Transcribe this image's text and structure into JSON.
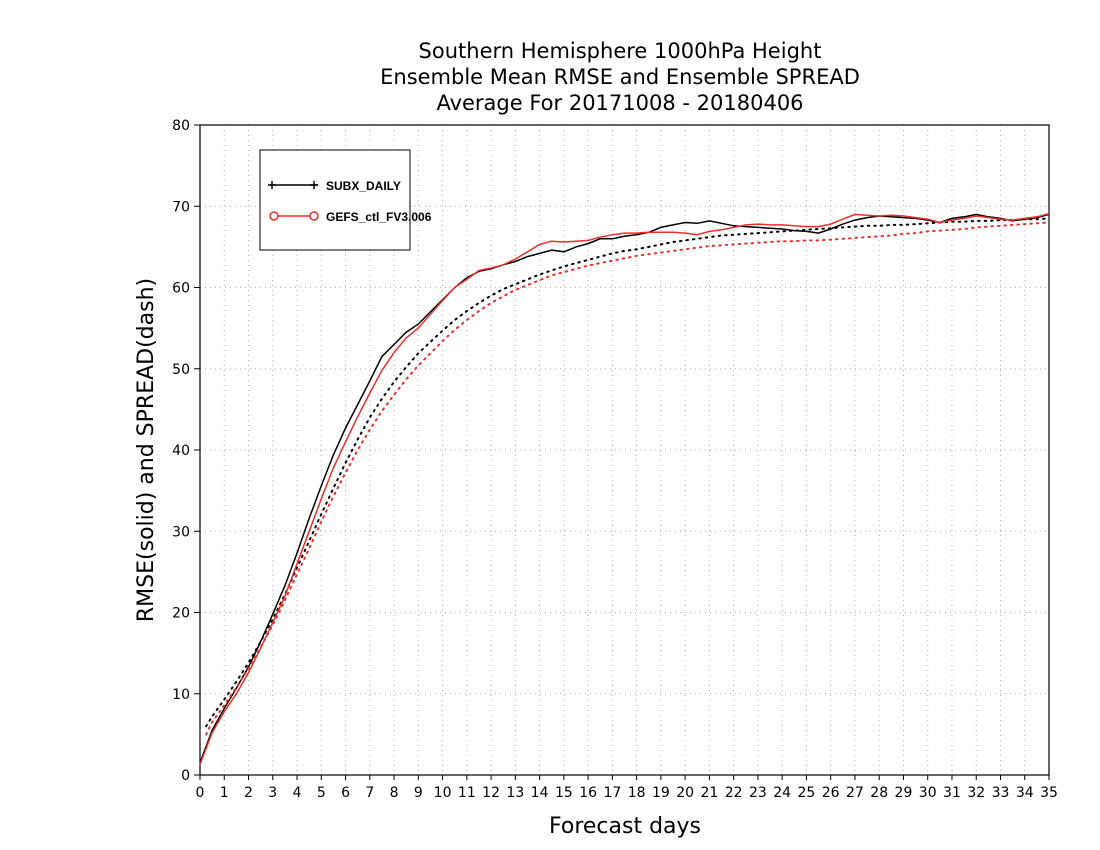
{
  "chart_data": {
    "type": "line",
    "title": [
      "Southern Hemisphere 1000hPa Height",
      "Ensemble Mean RMSE and Ensemble SPREAD",
      "Average For 20171008 - 20180406"
    ],
    "xlabel": "Forecast days",
    "ylabel": "RMSE(solid) and SPREAD(dash)",
    "xlim": [
      0,
      35
    ],
    "ylim": [
      0,
      80
    ],
    "xticks": [
      0,
      1,
      2,
      3,
      4,
      5,
      6,
      7,
      8,
      9,
      10,
      11,
      12,
      13,
      14,
      15,
      16,
      17,
      18,
      19,
      20,
      21,
      22,
      23,
      24,
      25,
      26,
      27,
      28,
      29,
      30,
      31,
      32,
      33,
      34,
      35
    ],
    "yticks": [
      0,
      10,
      20,
      30,
      40,
      50,
      60,
      70,
      80
    ],
    "grid": true,
    "legend_position": "top-left",
    "series": [
      {
        "name": "SUBX_DAILY",
        "color": "#000000",
        "marker": "plus",
        "rmse": {
          "x": [
            0,
            0.5,
            1,
            1.5,
            2,
            2.5,
            3,
            3.5,
            4,
            4.5,
            5,
            5.5,
            6,
            6.5,
            7,
            7.5,
            8,
            8.5,
            9,
            9.5,
            10,
            10.5,
            11,
            11.5,
            12,
            12.5,
            13,
            13.5,
            14,
            14.5,
            15,
            15.5,
            16,
            16.5,
            17,
            17.5,
            18,
            18.5,
            19,
            19.5,
            20,
            20.5,
            21,
            21.5,
            22,
            22.5,
            23,
            23.5,
            24,
            24.5,
            25,
            25.5,
            26,
            26.5,
            27,
            27.5,
            28,
            28.5,
            29,
            29.5,
            30,
            30.5,
            31,
            31.5,
            32,
            32.5,
            33,
            33.5,
            34,
            34.5,
            35
          ],
          "y": [
            1.5,
            5.5,
            8.2,
            10.7,
            13.3,
            16.4,
            19.8,
            23.3,
            27.3,
            31.6,
            35.6,
            39.4,
            42.7,
            45.6,
            48.5,
            51.5,
            53.0,
            54.5,
            55.5,
            57.0,
            58.5,
            60.0,
            61.2,
            62.0,
            62.3,
            62.8,
            63.2,
            63.8,
            64.2,
            64.6,
            64.4,
            65.0,
            65.4,
            66.0,
            66.0,
            66.3,
            66.5,
            66.8,
            67.4,
            67.7,
            68.0,
            67.9,
            68.2,
            67.9,
            67.6,
            67.5,
            67.4,
            67.3,
            67.2,
            67.0,
            66.9,
            66.7,
            67.2,
            67.8,
            68.3,
            68.6,
            68.8,
            68.7,
            68.6,
            68.5,
            68.3,
            68.0,
            68.5,
            68.7,
            69.0,
            68.7,
            68.5,
            68.2,
            68.4,
            68.6,
            69.0
          ]
        },
        "spread": {
          "x": [
            0.25,
            0.5,
            1,
            1.5,
            2,
            2.5,
            3,
            3.5,
            4,
            4.5,
            5,
            5.5,
            6,
            6.5,
            7,
            7.5,
            8,
            8.5,
            9,
            9.5,
            10,
            10.5,
            11,
            11.5,
            12,
            12.5,
            13,
            13.5,
            14,
            14.5,
            15,
            15.5,
            16,
            16.5,
            17,
            17.5,
            18,
            18.5,
            19,
            19.5,
            20,
            20.5,
            21,
            21.5,
            22,
            22.5,
            23,
            23.5,
            24,
            24.5,
            25,
            25.5,
            26,
            26.5,
            27,
            27.5,
            28,
            28.5,
            29,
            29.5,
            30,
            30.5,
            31,
            31.5,
            32,
            32.5,
            33,
            33.5,
            34,
            34.5,
            35
          ],
          "y": [
            6.0,
            7.2,
            9.3,
            11.5,
            13.8,
            16.4,
            19.2,
            22.2,
            25.5,
            28.8,
            32.1,
            35.3,
            38.4,
            41.3,
            44.0,
            46.3,
            48.4,
            50.2,
            51.9,
            53.3,
            54.7,
            56.0,
            57.1,
            58.1,
            59.0,
            59.8,
            60.4,
            61.0,
            61.6,
            62.1,
            62.6,
            63.0,
            63.4,
            63.8,
            64.2,
            64.5,
            64.7,
            65.0,
            65.3,
            65.6,
            65.8,
            66.0,
            66.2,
            66.4,
            66.5,
            66.6,
            66.7,
            66.8,
            66.9,
            67.0,
            67.1,
            67.2,
            67.3,
            67.4,
            67.5,
            67.6,
            67.6,
            67.7,
            67.7,
            67.8,
            67.9,
            68.0,
            68.1,
            68.1,
            68.2,
            68.2,
            68.3,
            68.3,
            68.4,
            68.4,
            68.5
          ]
        }
      },
      {
        "name": "GEFS_ctl_FV3.006",
        "color": "#e8302c",
        "marker": "circle",
        "rmse": {
          "x": [
            0,
            0.5,
            1,
            1.5,
            2,
            2.5,
            3,
            3.5,
            4,
            4.5,
            5,
            5.5,
            6,
            6.5,
            7,
            7.5,
            8,
            8.5,
            9,
            9.5,
            10,
            10.5,
            11,
            11.5,
            12,
            12.5,
            13,
            13.5,
            14,
            14.5,
            15,
            15.5,
            16,
            16.5,
            17,
            17.5,
            18,
            18.5,
            19,
            19.5,
            20,
            20.5,
            21,
            21.5,
            22,
            22.5,
            23,
            23.5,
            24,
            24.5,
            25,
            25.5,
            26,
            26.5,
            27,
            27.5,
            28,
            28.5,
            29,
            29.5,
            30,
            30.5,
            31,
            31.5,
            32,
            32.5,
            33,
            33.5,
            34,
            34.5,
            35
          ],
          "y": [
            1.3,
            5.2,
            7.8,
            10.0,
            12.6,
            15.6,
            18.8,
            22.0,
            26.0,
            30.0,
            34.0,
            37.8,
            41.0,
            44.1,
            47.0,
            49.8,
            52.0,
            53.8,
            55.0,
            56.7,
            58.4,
            60.0,
            61.0,
            62.1,
            62.4,
            62.8,
            63.5,
            64.4,
            65.3,
            65.7,
            65.6,
            65.7,
            65.8,
            66.2,
            66.5,
            66.7,
            66.7,
            66.8,
            66.8,
            66.8,
            66.7,
            66.5,
            66.9,
            67.1,
            67.4,
            67.7,
            67.8,
            67.7,
            67.7,
            67.6,
            67.5,
            67.5,
            67.8,
            68.4,
            69.0,
            68.9,
            68.8,
            68.9,
            68.8,
            68.6,
            68.4,
            68.0,
            68.3,
            68.5,
            68.8,
            68.6,
            68.4,
            68.3,
            68.5,
            68.7,
            69.1
          ]
        },
        "spread": {
          "x": [
            0.25,
            0.5,
            1,
            1.5,
            2,
            2.5,
            3,
            3.5,
            4,
            4.5,
            5,
            5.5,
            6,
            6.5,
            7,
            7.5,
            8,
            8.5,
            9,
            9.5,
            10,
            10.5,
            11,
            11.5,
            12,
            12.5,
            13,
            13.5,
            14,
            14.5,
            15,
            15.5,
            16,
            16.5,
            17,
            17.5,
            18,
            18.5,
            19,
            19.5,
            20,
            20.5,
            21,
            21.5,
            22,
            22.5,
            23,
            23.5,
            24,
            24.5,
            25,
            25.5,
            26,
            26.5,
            27,
            27.5,
            28,
            28.5,
            29,
            29.5,
            30,
            30.5,
            31,
            31.5,
            32,
            32.5,
            33,
            33.5,
            34,
            34.5,
            35
          ],
          "y": [
            5.0,
            6.5,
            8.6,
            10.8,
            13.1,
            15.7,
            18.5,
            21.5,
            24.7,
            27.9,
            31.2,
            34.3,
            37.2,
            40.0,
            42.5,
            44.8,
            46.8,
            48.7,
            50.4,
            51.9,
            53.4,
            54.8,
            56.0,
            57.1,
            58.1,
            58.9,
            59.7,
            60.3,
            60.9,
            61.5,
            61.9,
            62.3,
            62.7,
            63.0,
            63.3,
            63.6,
            63.9,
            64.1,
            64.3,
            64.5,
            64.7,
            64.9,
            65.1,
            65.2,
            65.3,
            65.4,
            65.5,
            65.6,
            65.7,
            65.7,
            65.8,
            65.8,
            65.9,
            66.0,
            66.1,
            66.2,
            66.3,
            66.4,
            66.6,
            66.7,
            66.9,
            67.0,
            67.1,
            67.2,
            67.4,
            67.5,
            67.6,
            67.7,
            67.8,
            67.9,
            68.0
          ]
        }
      }
    ]
  }
}
